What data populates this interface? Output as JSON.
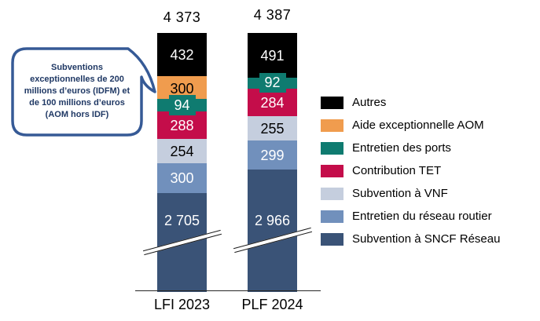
{
  "chart_data": {
    "type": "bar",
    "subtype": "stacked",
    "title": "",
    "categories": [
      "LFI 2023",
      "PLF 2024"
    ],
    "column_totals": [
      4373,
      4387
    ],
    "total_labels": [
      "4 373",
      "4 387"
    ],
    "axis_break_on_bottom_segment": true,
    "legend_position": "right",
    "series": [
      {
        "name": "Autres",
        "color": "#000000",
        "text_color": "#ffffff",
        "values": [
          432,
          491
        ],
        "labels": [
          "432",
          "491"
        ]
      },
      {
        "name": "Aide exceptionnelle AOM",
        "color": "#F09C4E",
        "text_color": "#000000",
        "values": [
          300,
          null
        ],
        "labels": [
          "300",
          null
        ]
      },
      {
        "name": "Entretien des ports",
        "color": "#0F7B70",
        "text_color": "#ffffff",
        "values": [
          94,
          92
        ],
        "labels": [
          "94",
          "92"
        ]
      },
      {
        "name": "Contribution TET",
        "color": "#C40D4A",
        "text_color": "#ffffff",
        "values": [
          288,
          284
        ],
        "labels": [
          "288",
          "284"
        ]
      },
      {
        "name": "Subvention à VNF",
        "color": "#C5CEDE",
        "text_color": "#000000",
        "values": [
          254,
          255
        ],
        "labels": [
          "254",
          "255"
        ]
      },
      {
        "name": "Entretien du réseau routier",
        "color": "#7190BC",
        "text_color": "#ffffff",
        "values": [
          300,
          299
        ],
        "labels": [
          "300",
          "299"
        ]
      },
      {
        "name": "Subvention à SNCF Réseau",
        "color": "#3A5377",
        "text_color": "#ffffff",
        "values": [
          2705,
          2966
        ],
        "labels": [
          "2 705",
          "2 966"
        ]
      }
    ]
  },
  "callout": {
    "lines": [
      "Subventions",
      "exceptionnelles de 200",
      "millions d’euros  (IDFM) et",
      "de 100 millions d’euros",
      "(AOM hors IDF)"
    ],
    "border_color": "#365A96",
    "text_color": "#1F3864"
  }
}
